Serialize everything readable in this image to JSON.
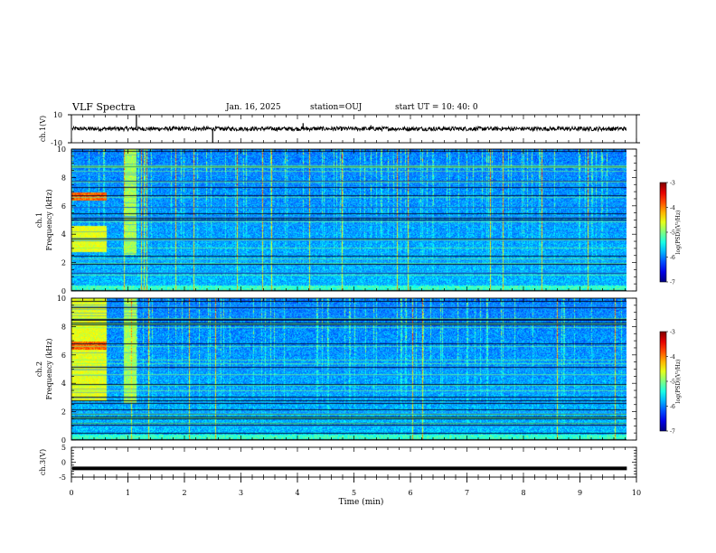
{
  "header": {
    "title": "VLF Spectra",
    "date": "Jan. 16, 2025",
    "station": "station=OUJ",
    "start": "start UT =  10: 40: 0"
  },
  "chart_data": [
    {
      "type": "line",
      "name": "ch1-waveform",
      "ylabel": "ch.1(V)",
      "ylim": [
        -10,
        10
      ],
      "yticks": [
        "10",
        "-10"
      ],
      "xlim": [
        0,
        10
      ],
      "baseline_v": 0,
      "spikes": [
        {
          "t": 1.15,
          "v": 10
        },
        {
          "t": 2.5,
          "v": -10
        },
        {
          "t": 4.1,
          "v": 4
        },
        {
          "t": 5.3,
          "v": 2.5
        }
      ]
    },
    {
      "type": "heatmap",
      "name": "ch1-spectrogram",
      "ylabel": "ch.1 Frequency (kHz)",
      "ylim": [
        0,
        10
      ],
      "yticks": [
        "0",
        "2",
        "4",
        "6",
        "8",
        "10"
      ],
      "xlim": [
        0,
        10
      ],
      "data_end_min": 9.83,
      "colorbar": {
        "label": "log(PSD)(V²/Hz)",
        "range": [
          -7,
          -3
        ],
        "ticks": [
          "-3",
          "-4",
          "-5",
          "-6",
          "-7"
        ]
      },
      "broadband_burst_min": [
        0.0,
        0.62
      ],
      "burst_band_khz": [
        2.8,
        4.6
      ],
      "second_burst_min": [
        0.92,
        1.15
      ],
      "tone_band_khz": [
        6.4,
        7.0
      ]
    },
    {
      "type": "heatmap",
      "name": "ch2-spectrogram",
      "ylabel": "ch.2 Frequency (kHz)",
      "ylim": [
        0,
        10
      ],
      "yticks": [
        "0",
        "2",
        "4",
        "6",
        "8",
        "10"
      ],
      "xlim": [
        0,
        10
      ],
      "data_end_min": 9.83,
      "colorbar": {
        "label": "log(PSD)(V²/Hz)",
        "range": [
          -7,
          -3
        ],
        "ticks": [
          "-3",
          "-4",
          "-5",
          "-6",
          "-7"
        ]
      },
      "broadband_burst_min": [
        0.0,
        0.62
      ],
      "burst_band_khz": [
        2.8,
        10.0
      ],
      "second_burst_min": [
        0.92,
        1.15
      ],
      "tone_band_khz": [
        6.4,
        7.0
      ]
    },
    {
      "type": "line",
      "name": "ch3-waveform",
      "ylabel": "ch.3(V)",
      "ylim": [
        -5,
        5
      ],
      "yticks": [
        "5",
        "0",
        "-5"
      ],
      "xlim": [
        0,
        10
      ],
      "xlabel": "Time (min)",
      "xticks": [
        "0",
        "1",
        "2",
        "3",
        "4",
        "5",
        "6",
        "7",
        "8",
        "9",
        "10"
      ],
      "level_v": -2.1,
      "data_end_min": 9.83
    }
  ]
}
